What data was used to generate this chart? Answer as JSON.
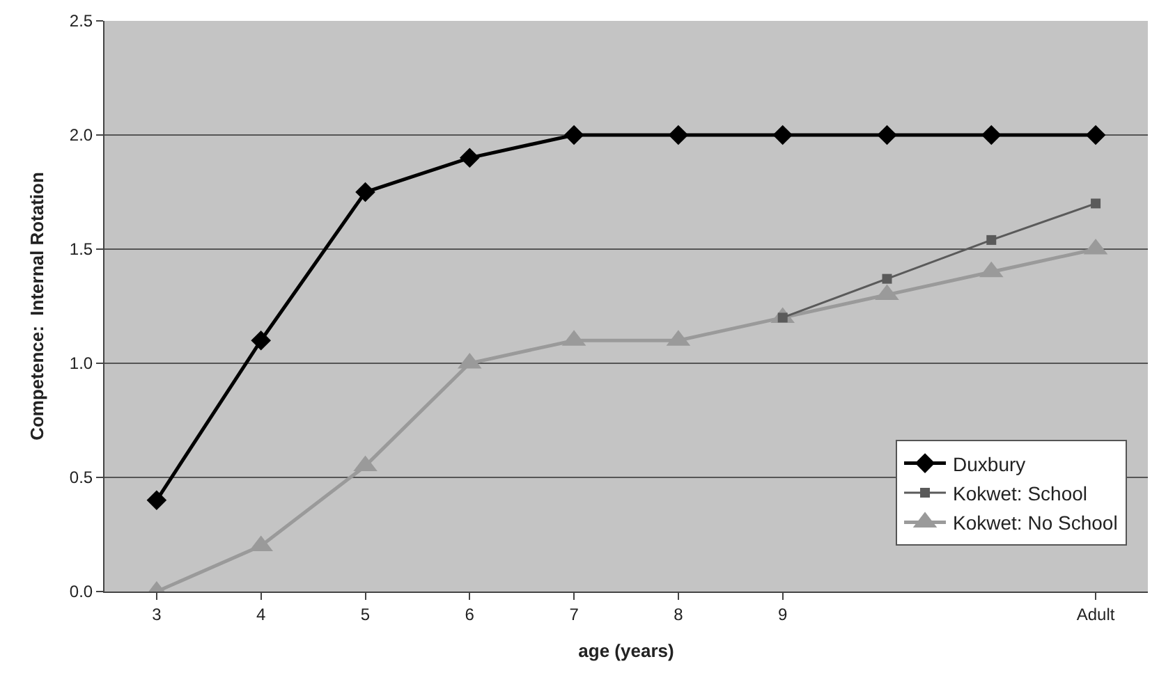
{
  "chart_data": {
    "type": "line",
    "xlabel": "age (years)",
    "ylabel": "Competence:  Internal Rotation",
    "categories": [
      "3",
      "4",
      "5",
      "6",
      "7",
      "8",
      "9",
      null,
      null,
      "Adult"
    ],
    "series": [
      {
        "name": "Duxbury",
        "color": "#000000",
        "marker": "diamond",
        "values": [
          0.4,
          1.1,
          1.75,
          1.9,
          2.0,
          2.0,
          2.0,
          2.0,
          2.0,
          2.0
        ]
      },
      {
        "name": "Kokwet: School",
        "color": "#5a5a5a",
        "marker": "square",
        "values": [
          null,
          null,
          null,
          null,
          null,
          null,
          1.2,
          1.37,
          1.54,
          1.7
        ]
      },
      {
        "name": "Kokwet: No School",
        "color": "#9a9a9a",
        "marker": "triangle",
        "values": [
          0.0,
          0.2,
          0.55,
          1.0,
          1.1,
          1.1,
          1.2,
          1.3,
          1.4,
          1.5
        ]
      }
    ],
    "ylim": [
      0,
      2.5
    ],
    "yticks": [
      {
        "value": 0,
        "label": "0.0"
      },
      {
        "value": 0.5,
        "label": "0.5"
      },
      {
        "value": 1,
        "label": "1.0"
      },
      {
        "value": 1.5,
        "label": "1.5"
      },
      {
        "value": 2,
        "label": "2.0"
      },
      {
        "value": 2.5,
        "label": "2.5"
      }
    ],
    "grid": "y",
    "legend": "bottom right"
  }
}
